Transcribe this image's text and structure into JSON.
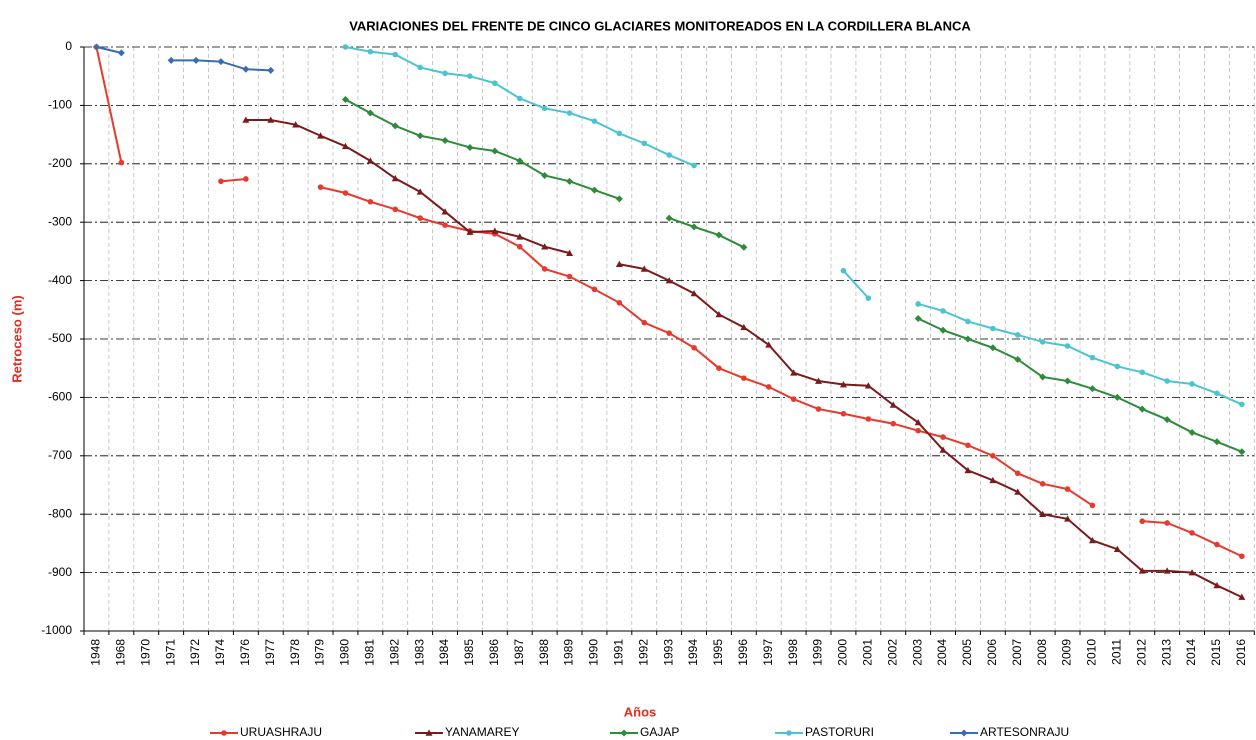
{
  "chart_data": {
    "type": "line",
    "title": "VARIACIONES DEL FRENTE DE CINCO GLACIARES MONITOREADOS EN LA CORDILLERA BLANCA",
    "x_label": "Años",
    "y_label": "Retroceso (m)",
    "categories": [
      "1948",
      "1968",
      "1970",
      "1971",
      "1972",
      "1974",
      "1976",
      "1977",
      "1978",
      "1979",
      "1980",
      "1981",
      "1982",
      "1983",
      "1984",
      "1985",
      "1986",
      "1987",
      "1988",
      "1989",
      "1990",
      "1991",
      "1992",
      "1993",
      "1994",
      "1995",
      "1996",
      "1997",
      "1998",
      "1999",
      "2000",
      "2001",
      "2002",
      "2003",
      "2004",
      "2005",
      "2006",
      "2007",
      "2008",
      "2009",
      "2010",
      "2011",
      "2012",
      "2013",
      "2014",
      "2015",
      "2016"
    ],
    "ylim": [
      -1000,
      0
    ],
    "yticks": [
      0,
      -100,
      -200,
      -300,
      -400,
      -500,
      -600,
      -700,
      -800,
      -900,
      -1000
    ],
    "grid": true,
    "legend": "bottom",
    "series": [
      {
        "name": "URUASHRAJU",
        "color": "#e8392e",
        "marker": "circle",
        "values": [
          0,
          -198,
          null,
          null,
          null,
          -230,
          -226,
          null,
          null,
          -240,
          -250,
          -265,
          -278,
          -293,
          -305,
          -315,
          -320,
          -342,
          -380,
          -393,
          -415,
          -438,
          -472,
          -490,
          -515,
          -550,
          -567,
          -582,
          -603,
          -620,
          -628,
          -637,
          -645,
          -657,
          -668,
          -682,
          -700,
          -730,
          -748,
          -757,
          -785,
          null,
          -812,
          -815,
          -832,
          -852,
          -872
        ]
      },
      {
        "name": "YANAMAREY",
        "color": "#7b1a1a",
        "marker": "triangle",
        "values": [
          null,
          null,
          null,
          null,
          null,
          null,
          -125,
          -125,
          -133,
          -152,
          -170,
          -195,
          -225,
          -248,
          -282,
          -317,
          -315,
          -325,
          -342,
          -353,
          null,
          -372,
          -380,
          -400,
          -422,
          -458,
          -480,
          -510,
          -558,
          -572,
          -578,
          -580,
          -613,
          -643,
          -690,
          -725,
          -742,
          -762,
          -800,
          -808,
          -845,
          -860,
          -897,
          -897,
          -900,
          -922,
          -942
        ]
      },
      {
        "name": "GAJAP",
        "color": "#2e8b3a",
        "marker": "diamond",
        "values": [
          null,
          null,
          null,
          null,
          null,
          null,
          null,
          null,
          null,
          null,
          -90,
          -113,
          -135,
          -152,
          -160,
          -172,
          -178,
          -195,
          -220,
          -230,
          -245,
          -260,
          null,
          -293,
          -308,
          -322,
          -343,
          null,
          null,
          null,
          null,
          null,
          null,
          -465,
          -485,
          -500,
          -515,
          -535,
          -565,
          -572,
          -585,
          -600,
          -620,
          -638,
          -660,
          -676,
          -693
        ]
      },
      {
        "name": "PASTORURI",
        "color": "#4cc3d0",
        "marker": "circle",
        "values": [
          null,
          null,
          null,
          null,
          null,
          null,
          null,
          null,
          null,
          null,
          0,
          -8,
          -13,
          -35,
          -45,
          -50,
          -62,
          -88,
          -105,
          -113,
          -127,
          -148,
          -165,
          -185,
          -203,
          null,
          null,
          null,
          null,
          null,
          -383,
          -430,
          null,
          -440,
          -452,
          -470,
          -482,
          -493,
          -505,
          -512,
          -532,
          -547,
          -557,
          -572,
          -577,
          -593,
          -612
        ]
      },
      {
        "name": "ARTESONRAJU",
        "color": "#3a6bb5",
        "marker": "diamond",
        "values": [
          0,
          -10,
          null,
          -23,
          -23,
          -25,
          -38,
          -40,
          null,
          null,
          null,
          null,
          null,
          null,
          null,
          null,
          null,
          null,
          null,
          null,
          null,
          null,
          null,
          null,
          null,
          null,
          null,
          null,
          null,
          null,
          null,
          null,
          null,
          null,
          null,
          null,
          null,
          null,
          null,
          null,
          null,
          null,
          null,
          null,
          null,
          null,
          null
        ]
      }
    ]
  }
}
